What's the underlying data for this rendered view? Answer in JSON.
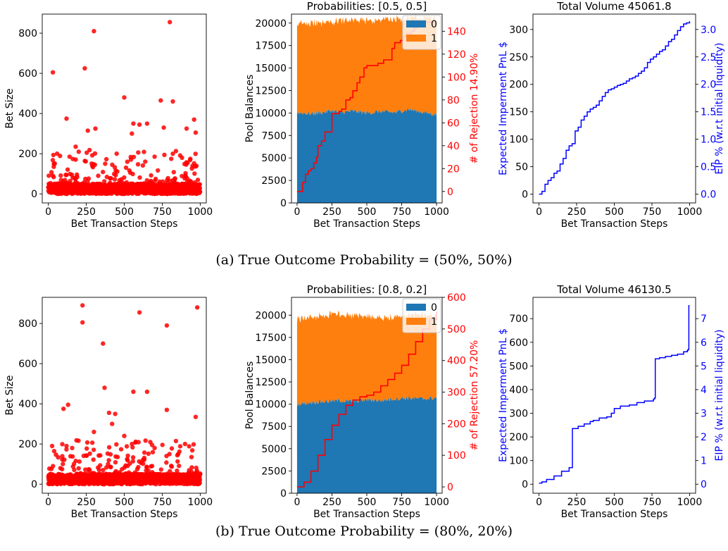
{
  "captions": {
    "a": "(a) True Outcome Probability = (50%, 50%)",
    "b": "(b) True Outcome Probability = (80%, 20%)"
  },
  "colors": {
    "scatter": "#ff0000",
    "pool_0": "#1f77b4",
    "pool_1": "#ff7f0e",
    "rejection": "#ff0000",
    "pnl": "#0000ff"
  },
  "chart_data": [
    {
      "id": "a-bet-size",
      "type": "scatter",
      "title": "",
      "xlabel": "Bet Transaction Steps",
      "ylabel": "Bet Size",
      "xlim": [
        -40,
        1040
      ],
      "ylim": [
        -45,
        895
      ],
      "xticks": [
        0,
        250,
        500,
        750,
        1000
      ],
      "yticks": [
        0,
        200,
        400,
        600,
        800
      ],
      "outliers": [
        [
          30,
          605
        ],
        [
          120,
          375
        ],
        [
          240,
          625
        ],
        [
          260,
          315
        ],
        [
          300,
          810
        ],
        [
          310,
          325
        ],
        [
          500,
          480
        ],
        [
          560,
          350
        ],
        [
          600,
          345
        ],
        [
          650,
          350
        ],
        [
          740,
          465
        ],
        [
          760,
          330
        ],
        [
          800,
          855
        ],
        [
          820,
          460
        ],
        [
          910,
          325
        ],
        [
          960,
          370
        ],
        [
          970,
          305
        ],
        [
          140,
          185
        ],
        [
          180,
          235
        ],
        [
          200,
          210
        ],
        [
          450,
          200
        ],
        [
          520,
          160
        ],
        [
          550,
          300
        ],
        [
          700,
          185
        ],
        [
          880,
          180
        ]
      ],
      "dense_band": [
        0,
        50
      ]
    },
    {
      "id": "a-pool",
      "type": "area",
      "title": "Probabilities: [0.5, 0.5]",
      "xlabel": "Bet Transaction Steps",
      "ylabel": "Pool Balances",
      "y2label": "# of Rejection 14.90%",
      "xlim": [
        -40,
        1040
      ],
      "ylim": [
        0,
        21000
      ],
      "y2lim": [
        -10,
        155
      ],
      "xticks": [
        0,
        250,
        500,
        750,
        1000
      ],
      "yticks": [
        0,
        2500,
        5000,
        7500,
        10000,
        12500,
        15000,
        17500,
        20000
      ],
      "y2ticks": [
        0,
        20,
        40,
        60,
        80,
        100,
        120,
        140
      ],
      "legend": [
        "0",
        "1"
      ],
      "legend_position": "top-right",
      "series": [
        {
          "name": "0",
          "x": [
            0,
            100,
            200,
            250,
            300,
            400,
            500,
            600,
            700,
            800,
            900,
            1000
          ],
          "values": [
            10050,
            9900,
            10100,
            10300,
            10050,
            10200,
            10000,
            10150,
            10050,
            10400,
            10100,
            9800
          ]
        },
        {
          "name": "1",
          "x": [
            0,
            100,
            200,
            250,
            300,
            400,
            500,
            600,
            700,
            800,
            900,
            1000
          ],
          "values": [
            9950,
            10150,
            10000,
            9850,
            10150,
            10050,
            10300,
            10200,
            10400,
            10100,
            10450,
            10800
          ]
        }
      ],
      "secondary_series": {
        "name": "# of Rejection",
        "x": [
          0,
          20,
          40,
          60,
          80,
          100,
          120,
          140,
          150,
          175,
          200,
          225,
          250,
          280,
          300,
          320,
          350,
          380,
          400,
          430,
          450,
          480,
          500,
          520,
          540,
          560,
          580,
          600,
          620,
          650,
          680,
          700,
          720,
          740,
          760,
          780,
          800,
          820,
          840,
          860,
          880,
          900,
          1000
        ],
        "values": [
          0,
          0,
          8,
          15,
          18,
          20,
          25,
          30,
          40,
          44,
          52,
          52,
          68,
          68,
          70,
          72,
          80,
          82,
          88,
          95,
          100,
          108,
          110,
          110,
          110,
          110,
          112,
          112,
          115,
          115,
          125,
          130,
          130,
          132,
          135,
          138,
          138,
          140,
          143,
          145,
          148,
          148,
          148
        ]
      }
    },
    {
      "id": "a-volume",
      "type": "line",
      "title": "Total Volume 45061.8",
      "xlabel": "Bet Transaction Steps",
      "ylabel": "Expected Imperment PnL $",
      "y2label": "EIP % (w.r.t initial liquidity)",
      "xlim": [
        -40,
        1040
      ],
      "ylim": [
        -16,
        328
      ],
      "y2lim": [
        -0.16,
        3.28
      ],
      "xticks": [
        0,
        250,
        500,
        750,
        1000
      ],
      "yticks": [
        0,
        50,
        100,
        150,
        200,
        250,
        300
      ],
      "y2ticks": [
        0.0,
        0.5,
        1.0,
        1.5,
        2.0,
        2.5,
        3.0
      ],
      "y2tick_labels": [
        "0.0",
        "0.5",
        "1.0",
        "1.5",
        "2.0",
        "2.5",
        "3.0"
      ],
      "series": [
        {
          "name": "",
          "x": [
            0,
            20,
            40,
            60,
            80,
            100,
            120,
            140,
            160,
            180,
            200,
            220,
            240,
            260,
            280,
            300,
            320,
            340,
            360,
            380,
            400,
            420,
            440,
            460,
            480,
            500,
            520,
            540,
            560,
            580,
            600,
            620,
            640,
            660,
            680,
            700,
            720,
            740,
            760,
            780,
            800,
            820,
            840,
            860,
            880,
            900,
            920,
            940,
            960,
            980,
            1000
          ],
          "values": [
            0,
            5,
            18,
            25,
            30,
            38,
            42,
            55,
            65,
            80,
            88,
            92,
            115,
            122,
            135,
            142,
            150,
            155,
            158,
            162,
            170,
            178,
            185,
            190,
            192,
            195,
            198,
            200,
            202,
            206,
            210,
            212,
            215,
            220,
            224,
            230,
            240,
            246,
            250,
            255,
            260,
            263,
            270,
            278,
            282,
            290,
            298,
            305,
            310,
            312,
            315
          ]
        }
      ]
    },
    {
      "id": "b-bet-size",
      "type": "scatter",
      "title": "",
      "xlabel": "Bet Transaction Steps",
      "ylabel": "Bet Size",
      "xlim": [
        -40,
        1040
      ],
      "ylim": [
        -45,
        930
      ],
      "xticks": [
        0,
        250,
        500,
        750,
        1000
      ],
      "yticks": [
        0,
        200,
        400,
        600,
        800
      ],
      "outliers": [
        [
          100,
          375
        ],
        [
          130,
          395
        ],
        [
          225,
          890
        ],
        [
          225,
          805
        ],
        [
          360,
          700
        ],
        [
          370,
          480
        ],
        [
          400,
          355
        ],
        [
          440,
          350
        ],
        [
          560,
          460
        ],
        [
          600,
          855
        ],
        [
          650,
          460
        ],
        [
          780,
          790
        ],
        [
          780,
          370
        ],
        [
          980,
          880
        ],
        [
          970,
          335
        ],
        [
          120,
          190
        ],
        [
          300,
          260
        ],
        [
          420,
          300
        ],
        [
          500,
          240
        ],
        [
          840,
          215
        ],
        [
          900,
          200
        ],
        [
          700,
          180
        ]
      ],
      "dense_band": [
        0,
        50
      ]
    },
    {
      "id": "b-pool",
      "type": "area",
      "title": "Probabilities: [0.8, 0.2]",
      "xlabel": "Bet Transaction Steps",
      "ylabel": "Pool Balances",
      "y2label": "# of Rejection 57.20%",
      "xlim": [
        -40,
        1040
      ],
      "ylim": [
        0,
        22000
      ],
      "y2lim": [
        -20,
        600
      ],
      "xticks": [
        0,
        250,
        500,
        750,
        1000
      ],
      "yticks": [
        0,
        2500,
        5000,
        7500,
        10000,
        12500,
        15000,
        17500,
        20000
      ],
      "y2ticks": [
        0,
        100,
        200,
        300,
        400,
        500,
        600
      ],
      "legend": [
        "0",
        "1"
      ],
      "legend_position": "top-right",
      "series": [
        {
          "name": "0",
          "x": [
            0,
            100,
            200,
            300,
            400,
            500,
            600,
            700,
            800,
            900,
            1000
          ],
          "values": [
            10000,
            10200,
            10300,
            10400,
            10300,
            10500,
            10400,
            10600,
            10700,
            10600,
            10700
          ]
        },
        {
          "name": "1",
          "x": [
            0,
            100,
            200,
            300,
            400,
            500,
            600,
            700,
            800,
            900,
            1000
          ],
          "values": [
            9600,
            9600,
            9700,
            9700,
            9600,
            9400,
            9300,
            9200,
            9300,
            9400,
            9300
          ]
        }
      ],
      "secondary_series": {
        "name": "# of Rejection",
        "x": [
          0,
          50,
          100,
          150,
          200,
          250,
          300,
          350,
          400,
          450,
          500,
          550,
          600,
          650,
          700,
          750,
          800,
          850,
          900,
          950,
          1000
        ],
        "values": [
          0,
          15,
          50,
          100,
          150,
          195,
          230,
          258,
          275,
          285,
          290,
          300,
          320,
          340,
          360,
          385,
          420,
          460,
          500,
          530,
          555
        ]
      }
    },
    {
      "id": "b-volume",
      "type": "line",
      "title": "Total Volume 46130.5",
      "xlabel": "Bet Transaction Steps",
      "ylabel": "Expected Imperment PnL $",
      "y2label": "EIP % (w.r.t initial liquidity)",
      "xlim": [
        -40,
        1040
      ],
      "ylim": [
        -38,
        790
      ],
      "y2lim": [
        -0.38,
        7.9
      ],
      "xticks": [
        0,
        250,
        500,
        750,
        1000
      ],
      "yticks": [
        0,
        100,
        200,
        300,
        400,
        500,
        600,
        700
      ],
      "y2ticks": [
        0,
        1,
        2,
        3,
        4,
        5,
        6,
        7
      ],
      "y2tick_labels": [
        "0",
        "1",
        "2",
        "3",
        "4",
        "5",
        "6",
        "7"
      ],
      "series": [
        {
          "name": "",
          "x": [
            0,
            20,
            50,
            100,
            150,
            200,
            218,
            222,
            260,
            300,
            340,
            360,
            400,
            450,
            480,
            500,
            540,
            600,
            650,
            700,
            760,
            768,
            772,
            800,
            840,
            880,
            920,
            960,
            985,
            990,
            995,
            1000
          ],
          "values": [
            5,
            10,
            20,
            35,
            55,
            70,
            70,
            235,
            245,
            255,
            265,
            270,
            280,
            285,
            300,
            320,
            330,
            335,
            345,
            352,
            360,
            365,
            530,
            535,
            540,
            545,
            550,
            560,
            565,
            570,
            755,
            755
          ]
        }
      ]
    }
  ]
}
